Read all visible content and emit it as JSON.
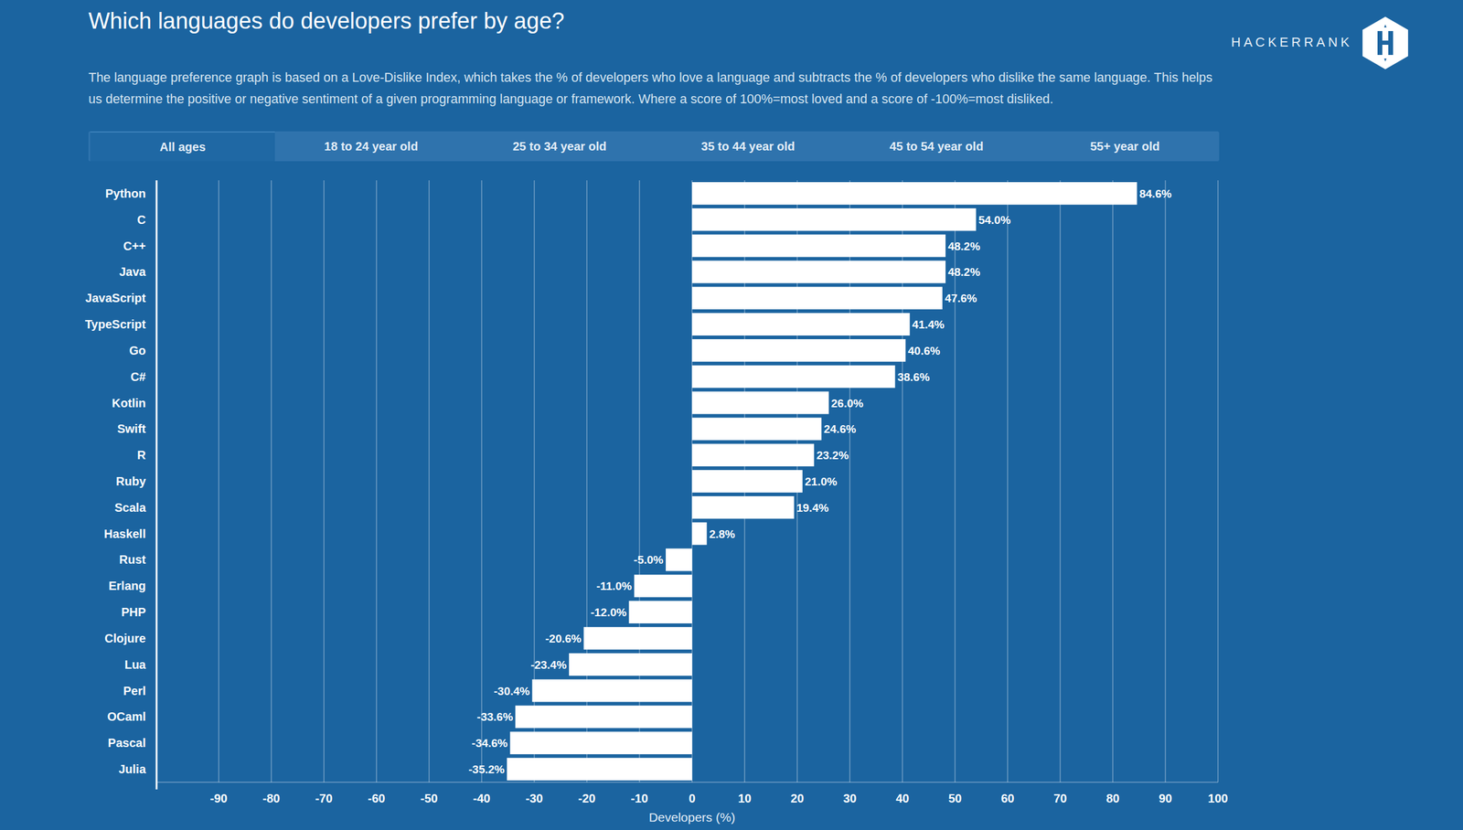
{
  "chart_data": {
    "type": "bar",
    "orientation": "horizontal",
    "title": "Which languages do developers prefer by age?",
    "subtitle": "The language preference graph is based on a Love-Dislike Index, which takes the % of developers who love a language and subtracts the % of developers who dislike the same language. This helps us determine the positive or negative sentiment of a given programming language or framework. Where a score of 100%=most loved and a score of -100%=most disliked.",
    "categories": [
      "Python",
      "C",
      "C++",
      "Java",
      "JavaScript",
      "TypeScript",
      "Go",
      "C#",
      "Kotlin",
      "Swift",
      "R",
      "Ruby",
      "Scala",
      "Haskell",
      "Rust",
      "Erlang",
      "PHP",
      "Clojure",
      "Lua",
      "Perl",
      "OCaml",
      "Pascal",
      "Julia"
    ],
    "values": [
      84.6,
      54.0,
      48.2,
      48.2,
      47.6,
      41.4,
      40.6,
      38.6,
      26.0,
      24.6,
      23.2,
      21.0,
      19.4,
      2.8,
      -5.0,
      -11.0,
      -12.0,
      -20.6,
      -23.4,
      -30.4,
      -33.6,
      -34.6,
      -35.2
    ],
    "value_labels": [
      "84.6%",
      "54.0%",
      "48.2%",
      "48.2%",
      "47.6%",
      "41.4%",
      "40.6%",
      "38.6%",
      "26.0%",
      "24.6%",
      "23.2%",
      "21.0%",
      "19.4%",
      "2.8%",
      "-5.0%",
      "-11.0%",
      "-12.0%",
      "-20.6%",
      "-23.4%",
      "-30.4%",
      "-33.6%",
      "-34.6%",
      "-35.2%"
    ],
    "color": "#ffffff",
    "xlabel": "Developers (%)",
    "xlim": [
      -100,
      100
    ],
    "xticks": [
      -90,
      -80,
      -70,
      -60,
      -50,
      -40,
      -30,
      -20,
      -10,
      0,
      10,
      20,
      30,
      40,
      50,
      60,
      70,
      80,
      90,
      100
    ],
    "grid": true,
    "data_labels": true
  },
  "page": {
    "brand": "HACKERRANK",
    "tabs": [
      "All ages",
      "18 to 24 year old",
      "25 to 34 year old",
      "35 to 44 year old",
      "45 to 54 year old",
      "55+ year old"
    ]
  }
}
